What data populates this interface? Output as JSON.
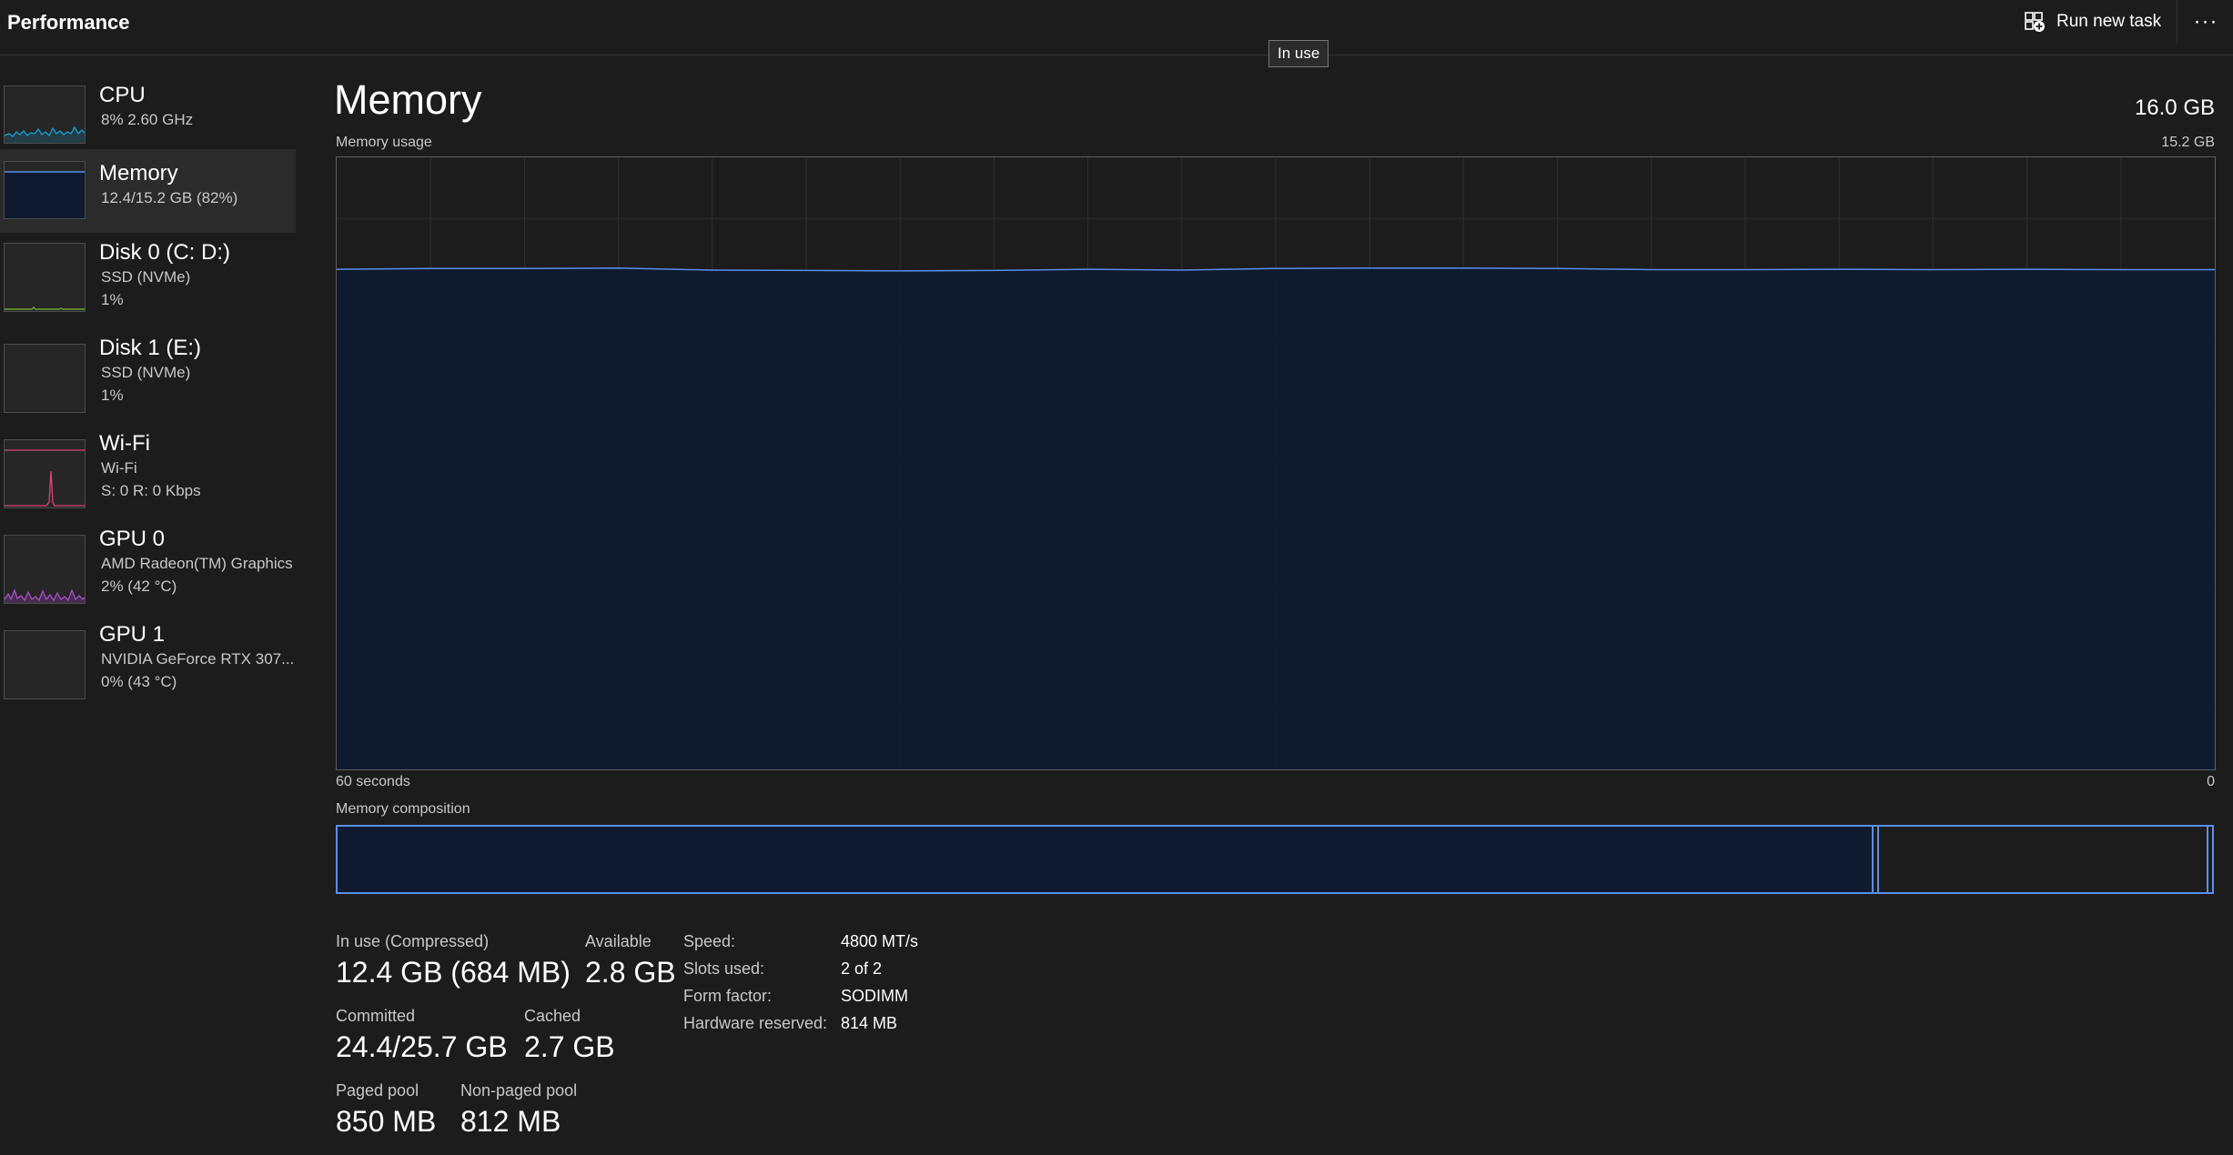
{
  "header": {
    "title": "Performance",
    "run_task_label": "Run new task",
    "more_label": "···"
  },
  "tooltip": "In use",
  "sidebar": {
    "items": [
      {
        "name": "CPU",
        "lines": [
          "8%  2.60 GHz"
        ],
        "color": "#17a0d6"
      },
      {
        "name": "Memory",
        "lines": [
          "12.4/15.2 GB (82%)"
        ],
        "color": "#5b8fe8",
        "selected": true
      },
      {
        "name": "Disk 0 (C: D:)",
        "lines": [
          "SSD (NVMe)",
          "1%"
        ],
        "color": "#7dba3c"
      },
      {
        "name": "Disk 1 (E:)",
        "lines": [
          "SSD (NVMe)",
          "1%"
        ],
        "color": "#7dba3c"
      },
      {
        "name": "Wi-Fi",
        "lines": [
          "Wi-Fi",
          "S: 0  R: 0 Kbps"
        ],
        "color": "#e0437b"
      },
      {
        "name": "GPU 0",
        "lines": [
          "AMD Radeon(TM) Graphics",
          "2%  (42 °C)"
        ],
        "color": "#b34fd6"
      },
      {
        "name": "GPU 1",
        "lines": [
          "NVIDIA GeForce RTX 307...",
          "0%  (43 °C)"
        ],
        "color": "#b34fd6"
      }
    ]
  },
  "main": {
    "title": "Memory",
    "total": "16.0 GB",
    "usage_label": "Memory usage",
    "usage_max": "15.2 GB",
    "time_left": "60 seconds",
    "time_right": "0",
    "composition_label": "Memory composition"
  },
  "colors": {
    "accent": "#5b8fe8",
    "fill": "#0f1a30",
    "background": "#1c1c1c"
  },
  "chart_data": {
    "type": "area",
    "xlabel": "60 seconds",
    "ylabel": "Memory usage",
    "ylim": [
      0,
      15.2
    ],
    "x": [
      60,
      57,
      54,
      51,
      48,
      45,
      42,
      39,
      36,
      33,
      30,
      27,
      24,
      21,
      18,
      15,
      12,
      9,
      6,
      3,
      0
    ],
    "values": [
      12.42,
      12.44,
      12.44,
      12.45,
      12.4,
      12.39,
      12.38,
      12.39,
      12.42,
      12.4,
      12.44,
      12.45,
      12.45,
      12.44,
      12.41,
      12.41,
      12.42,
      12.41,
      12.42,
      12.41,
      12.41
    ]
  },
  "composition": {
    "in_use_fraction": 0.816,
    "modified_fraction": 0.002,
    "standby_fraction": 0.178
  },
  "stats": {
    "in_use_label": "In use (Compressed)",
    "in_use_value": "12.4 GB (684 MB)",
    "available_label": "Available",
    "available_value": "2.8 GB",
    "committed_label": "Committed",
    "committed_value": "24.4/25.7 GB",
    "cached_label": "Cached",
    "cached_value": "2.7 GB",
    "paged_label": "Paged pool",
    "paged_value": "850 MB",
    "nonpaged_label": "Non-paged pool",
    "nonpaged_value": "812 MB"
  },
  "details": [
    {
      "key": "Speed:",
      "value": "4800 MT/s"
    },
    {
      "key": "Slots used:",
      "value": "2 of 2"
    },
    {
      "key": "Form factor:",
      "value": "SODIMM"
    },
    {
      "key": "Hardware reserved:",
      "value": "814 MB"
    }
  ]
}
